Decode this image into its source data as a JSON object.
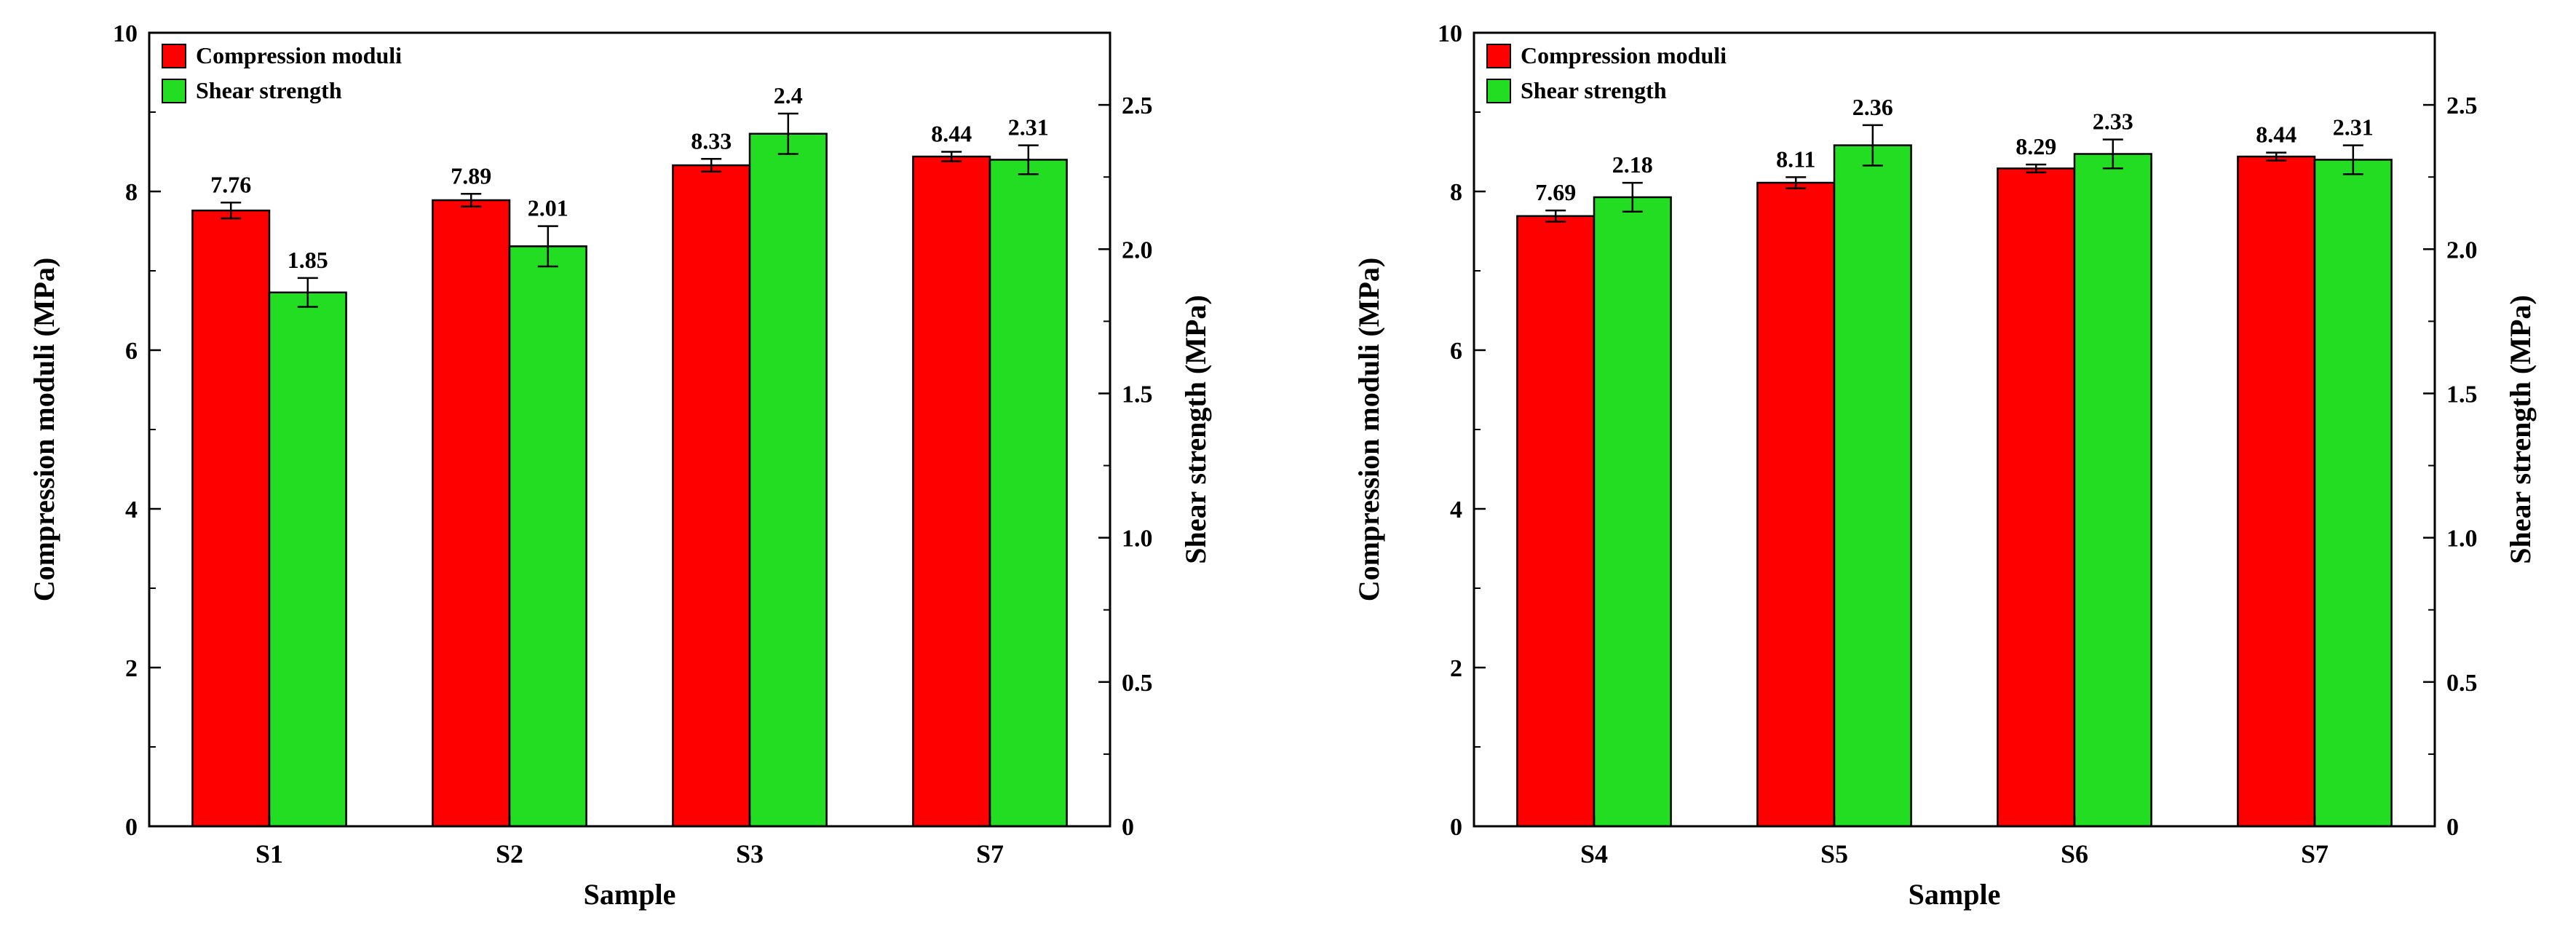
{
  "page": {
    "background": "#ffffff",
    "text_color": "#000000"
  },
  "chart_data": [
    {
      "type": "bar",
      "title": "",
      "categories": [
        "S1",
        "S2",
        "S3",
        "S7"
      ],
      "xlabel": "Sample",
      "ylabel_left": "Compression moduli (MPa)",
      "ylabel_right": "Shear strength (MPa)",
      "ylim_left": [
        0,
        10
      ],
      "yticks_left": [
        "0",
        "2",
        "4",
        "6",
        "8",
        "10"
      ],
      "ylim_right": [
        0,
        2.75
      ],
      "yticks_right": [
        "0",
        "0.5",
        "1.0",
        "1.5",
        "2.0",
        "2.5"
      ],
      "grid": false,
      "legend_position": "top-left",
      "legend": [
        "Compression moduli",
        "Shear strength"
      ],
      "series": [
        {
          "name": "Compression moduli",
          "axis": "left",
          "color": "#ff0000",
          "values": [
            7.76,
            7.89,
            8.33,
            8.44
          ],
          "labels": [
            "7.76",
            "7.89",
            "8.33",
            "8.44"
          ],
          "errors": [
            0.1,
            0.08,
            0.08,
            0.06
          ]
        },
        {
          "name": "Shear strength",
          "axis": "right",
          "color": "#22dd22",
          "values": [
            1.85,
            2.01,
            2.4,
            2.31
          ],
          "labels": [
            "1.85",
            "2.01",
            "2.4",
            "2.31"
          ],
          "errors": [
            0.05,
            0.07,
            0.07,
            0.05
          ]
        }
      ]
    },
    {
      "type": "bar",
      "title": "",
      "categories": [
        "S4",
        "S5",
        "S6",
        "S7"
      ],
      "xlabel": "Sample",
      "ylabel_left": "Compression moduli (MPa)",
      "ylabel_right": "Shear strength (MPa)",
      "ylim_left": [
        0,
        10
      ],
      "yticks_left": [
        "0",
        "2",
        "4",
        "6",
        "8",
        "10"
      ],
      "ylim_right": [
        0,
        2.75
      ],
      "yticks_right": [
        "0",
        "0.5",
        "1.0",
        "1.5",
        "2.0",
        "2.5"
      ],
      "grid": false,
      "legend_position": "top-left",
      "legend": [
        "Compression moduli",
        "Shear strength"
      ],
      "series": [
        {
          "name": "Compression moduli",
          "axis": "left",
          "color": "#ff0000",
          "values": [
            7.69,
            8.11,
            8.29,
            8.44
          ],
          "labels": [
            "7.69",
            "8.11",
            "8.29",
            "8.44"
          ],
          "errors": [
            0.07,
            0.07,
            0.05,
            0.05
          ]
        },
        {
          "name": "Shear strength",
          "axis": "right",
          "color": "#22dd22",
          "values": [
            2.18,
            2.36,
            2.33,
            2.31
          ],
          "labels": [
            "2.18",
            "2.36",
            "2.33",
            "2.31"
          ],
          "errors": [
            0.05,
            0.07,
            0.05,
            0.05
          ]
        }
      ]
    }
  ]
}
